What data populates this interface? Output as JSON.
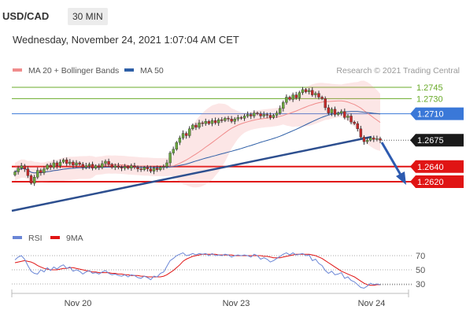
{
  "header": {
    "symbol": "USD/CAD",
    "timeframe": "30 MIN",
    "datetime": "Wednesday, November 24, 2021 1:07:04 AM CET"
  },
  "credit": "Research © 2021 Trading Central",
  "colors": {
    "ma20_band": "#f08c8c",
    "ma50": "#2e5fa7",
    "green_level": "#6aab2a",
    "blue_level": "#3a78d8",
    "red_level": "#e01414",
    "rsi": "#6a86d6",
    "rsi_ma": "#e01414",
    "candle_up": "#6aa53c",
    "candle_down": "#c62828",
    "current_price": "#1a1a1a"
  },
  "chart_data": [
    {
      "type": "candlestick",
      "series": [
        {
          "name": "MA 20 + Bollinger Bands",
          "color": "#f08c8c"
        },
        {
          "name": "MA 50",
          "color": "#2e5fa7"
        }
      ],
      "price_levels": [
        {
          "value": 1.2745,
          "label": "1.2745",
          "kind": "resistance"
        },
        {
          "value": 1.273,
          "label": "1.2730",
          "kind": "resistance"
        },
        {
          "value": 1.271,
          "label": "1.2710",
          "kind": "pivot"
        },
        {
          "value": 1.2675,
          "label": "1.2675",
          "kind": "last_price"
        },
        {
          "value": 1.264,
          "label": "1.2640",
          "kind": "target"
        },
        {
          "value": 1.262,
          "label": "1.2620",
          "kind": "target"
        }
      ],
      "x_tick_labels": [
        "Nov 20",
        "Nov 23",
        "Nov 24"
      ],
      "closes": [
        1.2633,
        1.2638,
        1.2641,
        1.2637,
        1.2628,
        1.2618,
        1.2626,
        1.2635,
        1.2632,
        1.2637,
        1.2642,
        1.2639,
        1.2645,
        1.2641,
        1.2646,
        1.2649,
        1.2644,
        1.2646,
        1.2642,
        1.2645,
        1.2643,
        1.2639,
        1.2641,
        1.2643,
        1.2638,
        1.2641,
        1.2639,
        1.2644,
        1.2647,
        1.2643,
        1.2639,
        1.2641,
        1.2639,
        1.2638,
        1.264,
        1.2638,
        1.2641,
        1.2639,
        1.2637,
        1.2636,
        1.2639,
        1.2637,
        1.2634,
        1.2638,
        1.2636,
        1.2639,
        1.264,
        1.2645,
        1.2658,
        1.2663,
        1.2672,
        1.2678,
        1.2684,
        1.2681,
        1.269,
        1.2695,
        1.2692,
        1.2698,
        1.2697,
        1.27,
        1.2697,
        1.2701,
        1.2698,
        1.2702,
        1.2701,
        1.2704,
        1.2703,
        1.27,
        1.2703,
        1.2705,
        1.2704,
        1.2707,
        1.2709,
        1.2707,
        1.2711,
        1.271,
        1.2707,
        1.2709,
        1.2708,
        1.2705,
        1.2708,
        1.2711,
        1.2717,
        1.2725,
        1.2732,
        1.2729,
        1.2735,
        1.2731,
        1.2738,
        1.2742,
        1.2739,
        1.2741,
        1.2735,
        1.2737,
        1.2732,
        1.273,
        1.2718,
        1.2711,
        1.2716,
        1.2709,
        1.2711,
        1.2713,
        1.2705,
        1.2707,
        1.2699,
        1.2697,
        1.269,
        1.2679,
        1.2673,
        1.2675,
        1.2678,
        1.2676,
        1.2677,
        1.2675
      ],
      "y_range": [
        1.258,
        1.276
      ]
    },
    {
      "type": "line",
      "series": [
        {
          "name": "RSI",
          "color": "#6a86d6",
          "values": [
            64,
            68,
            70,
            65,
            56,
            48,
            45,
            44,
            50,
            47,
            53,
            49,
            54,
            51,
            55,
            57,
            52,
            54,
            48,
            50,
            48,
            44,
            47,
            49,
            45,
            46,
            44,
            47,
            49,
            45,
            43,
            44,
            42,
            41,
            43,
            40,
            43,
            42,
            39,
            38,
            41,
            39,
            36,
            41,
            40,
            45,
            47,
            55,
            63,
            66,
            70,
            72,
            74,
            70,
            71,
            73,
            71,
            73,
            72,
            73,
            70,
            73,
            70,
            71,
            70,
            72,
            71,
            68,
            70,
            71,
            70,
            71,
            70,
            68,
            72,
            70,
            65,
            67,
            65,
            61,
            63,
            66,
            69,
            72,
            74,
            71,
            74,
            71,
            72,
            73,
            70,
            71,
            63,
            65,
            59,
            56,
            49,
            45,
            48,
            43,
            44,
            46,
            38,
            40,
            35,
            33,
            29,
            25,
            24,
            27,
            31,
            29,
            30,
            29
          ]
        },
        {
          "name": "9MA",
          "color": "#e01414",
          "values": [
            60,
            61,
            62,
            63,
            62,
            61,
            59,
            56,
            54,
            52,
            51,
            50,
            50,
            50,
            51,
            52,
            52,
            53,
            53,
            52,
            51,
            50,
            49,
            48,
            47,
            47,
            46,
            46,
            46,
            46,
            45,
            45,
            44,
            44,
            43,
            43,
            42,
            42,
            42,
            41,
            41,
            40,
            40,
            40,
            40,
            40,
            41,
            43,
            46,
            49,
            53,
            57,
            62,
            65,
            67,
            69,
            70,
            71,
            72,
            72,
            72,
            72,
            72,
            71,
            71,
            71,
            71,
            71,
            70,
            70,
            70,
            70,
            70,
            70,
            70,
            70,
            70,
            69,
            69,
            68,
            67,
            67,
            67,
            68,
            69,
            70,
            71,
            72,
            72,
            72,
            72,
            72,
            71,
            70,
            68,
            66,
            63,
            60,
            57,
            54,
            51,
            48,
            46,
            44,
            42,
            40,
            37,
            34,
            31,
            29,
            28,
            28,
            29,
            29
          ]
        }
      ],
      "y_tick_labels": [
        "70",
        "50",
        "30"
      ],
      "levels": [
        70,
        50,
        30
      ],
      "y_range": [
        20,
        80
      ]
    }
  ]
}
